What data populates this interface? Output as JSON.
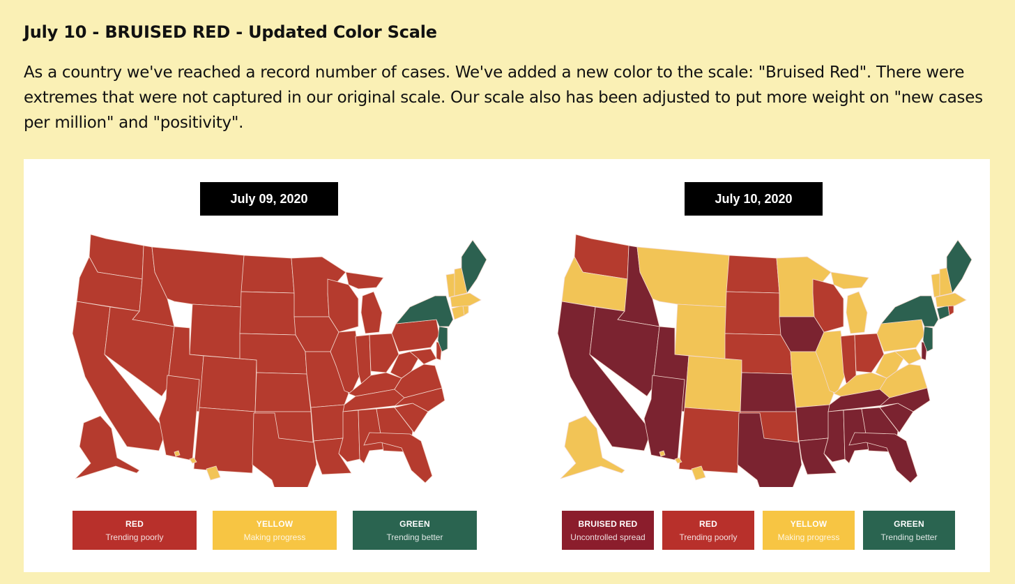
{
  "heading": "July 10 - BRUISED RED - Updated Color Scale",
  "description": "As a country we've reached a record number of cases. We've added a new color to the scale: \"Bruised Red\". There were extremes that were not captured in our original scale. Our scale also has been adjusted to put more weight on \"new cases per million\" and \"positivity\".",
  "colors": {
    "bruised_red": "#7b2330",
    "red": "#b53b2e",
    "yellow": "#f2c456",
    "green": "#2c6150",
    "legend_bruised": "#8b1d2c",
    "legend_red": "#b8302b",
    "legend_yellow": "#f7c543",
    "legend_green": "#2a6450"
  },
  "maps": [
    {
      "date": "July 09, 2020",
      "legend": [
        {
          "label": "RED",
          "sub": "Trending poorly"
        },
        {
          "label": "YELLOW",
          "sub": "Making progress"
        },
        {
          "label": "GREEN",
          "sub": "Trending better"
        }
      ]
    },
    {
      "date": "July 10, 2020",
      "legend": [
        {
          "label": "BRUISED RED",
          "sub": "Uncontrolled spread"
        },
        {
          "label": "RED",
          "sub": "Trending poorly"
        },
        {
          "label": "YELLOW",
          "sub": "Making progress"
        },
        {
          "label": "GREEN",
          "sub": "Trending better"
        }
      ]
    }
  ]
}
